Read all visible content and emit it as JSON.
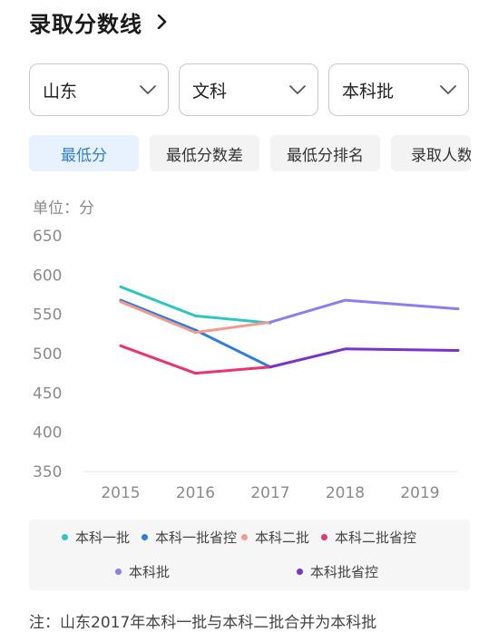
{
  "header": {
    "title": "录取分数线"
  },
  "filters": [
    {
      "value": "山东"
    },
    {
      "value": "文科"
    },
    {
      "value": "本科批"
    }
  ],
  "tabs": [
    {
      "label": "最低分",
      "active": true
    },
    {
      "label": "最低分数差",
      "active": false
    },
    {
      "label": "最低分排名",
      "active": false
    },
    {
      "label": "录取人数",
      "active": false
    }
  ],
  "unit_label": "单位：分",
  "colors": {
    "accent": "#2e7ddb",
    "active_tab_bg": "#e8f2ff"
  },
  "chart_data": {
    "type": "line",
    "categories": [
      "2015",
      "2016",
      "2017",
      "2018",
      "2019"
    ],
    "ylim": [
      350,
      650
    ],
    "yticks": [
      650,
      600,
      550,
      500,
      450,
      400,
      350
    ],
    "grid": false,
    "legend": "bottom",
    "series": [
      {
        "name": "本科一批",
        "color": "#2cc7c0",
        "values": [
          585,
          548,
          539,
          null,
          null
        ]
      },
      {
        "name": "本科一批省控",
        "color": "#2b7de0",
        "values": [
          568,
          530,
          483,
          null,
          null
        ]
      },
      {
        "name": "本科二批",
        "color": "#f29a8e",
        "values": [
          566,
          527,
          540,
          null,
          null
        ]
      },
      {
        "name": "本科二批省控",
        "color": "#e8336b",
        "values": [
          510,
          475,
          483,
          null,
          null
        ]
      },
      {
        "name": "本科批",
        "color": "#8c7ef0",
        "values": [
          null,
          null,
          540,
          568,
          557
        ]
      },
      {
        "name": "本科批省控",
        "color": "#7a33c8",
        "values": [
          null,
          null,
          483,
          506,
          504
        ]
      }
    ]
  },
  "footnote": "注：山东2017年本科一批与本科二批合并为本科批"
}
